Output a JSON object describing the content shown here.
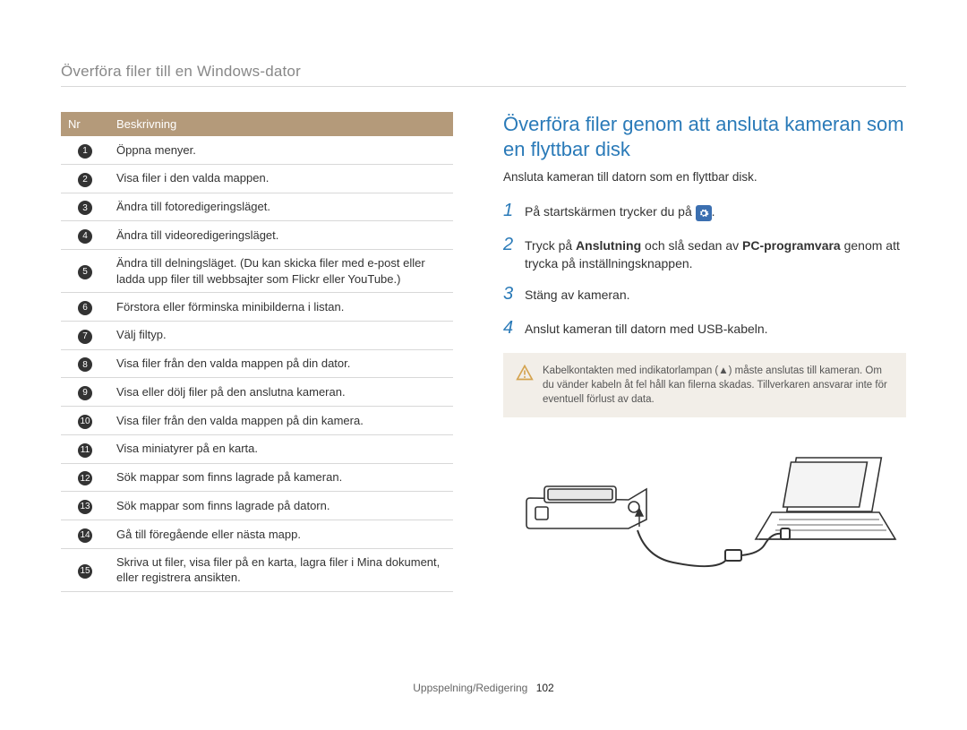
{
  "page_title": "Överföra filer till en Windows-dator",
  "table": {
    "header_nr": "Nr",
    "header_desc": "Beskrivning",
    "rows": [
      {
        "n": "1",
        "desc": "Öppna menyer."
      },
      {
        "n": "2",
        "desc": "Visa filer i den valda mappen."
      },
      {
        "n": "3",
        "desc": "Ändra till fotoredigeringsläget."
      },
      {
        "n": "4",
        "desc": "Ändra till videoredigeringsläget."
      },
      {
        "n": "5",
        "desc": "Ändra till delningsläget. (Du kan skicka filer med e-post eller ladda upp filer till webbsajter som Flickr eller YouTube.)"
      },
      {
        "n": "6",
        "desc": "Förstora eller förminska minibilderna i listan."
      },
      {
        "n": "7",
        "desc": "Välj filtyp."
      },
      {
        "n": "8",
        "desc": "Visa filer från den valda mappen på din dator."
      },
      {
        "n": "9",
        "desc": "Visa eller dölj filer på den anslutna kameran."
      },
      {
        "n": "10",
        "desc": "Visa filer från den valda mappen på din kamera."
      },
      {
        "n": "11",
        "desc": "Visa miniatyrer på en karta."
      },
      {
        "n": "12",
        "desc": "Sök mappar som finns lagrade på kameran."
      },
      {
        "n": "13",
        "desc": "Sök mappar som finns lagrade på datorn."
      },
      {
        "n": "14",
        "desc": "Gå till föregående eller nästa mapp."
      },
      {
        "n": "15",
        "desc": "Skriva ut filer, visa filer på en karta, lagra filer i Mina dokument, eller registrera ansikten."
      }
    ]
  },
  "heading": "Överföra filer genom att ansluta kameran som en flyttbar disk",
  "subtext": "Ansluta kameran till datorn som en flyttbar disk.",
  "steps": {
    "s1_pre": "På startskärmen trycker du på ",
    "s1_post": ".",
    "s2_a": "Tryck på ",
    "s2_b": "Anslutning",
    "s2_c": " och slå sedan av ",
    "s2_d": "PC-programvara",
    "s2_e": " genom att trycka på inställningsknappen.",
    "s3": "Stäng av kameran.",
    "s4": "Anslut kameran till datorn med USB-kabeln."
  },
  "step_nums": {
    "n1": "1",
    "n2": "2",
    "n3": "3",
    "n4": "4"
  },
  "note": "Kabelkontakten med indikatorlampan (▲) måste anslutas till kameran. Om du vänder kabeln åt fel håll kan filerna skadas. Tillverkaren ansvarar inte för eventuell förlust av data.",
  "footer_section": "Uppspelning/Redigering",
  "footer_page": "102",
  "colors": {
    "accent": "#2a7ab8",
    "table_header": "#b49a7a",
    "note_bg": "#f2eee8",
    "warn_stroke": "#d4a34f"
  }
}
